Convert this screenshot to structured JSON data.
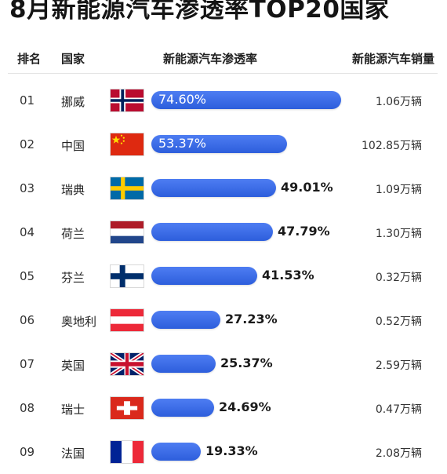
{
  "title": "8月新能源汽车渗透率TOP20国家",
  "headers": {
    "rank": "排名",
    "country": "国家",
    "penetration": "新能源汽车渗透率",
    "sales": "新能源汽车销量"
  },
  "chart_data": {
    "type": "bar",
    "orientation": "horizontal",
    "categories": [
      "挪威",
      "中国",
      "瑞典",
      "荷兰",
      "芬兰",
      "奥地利",
      "英国",
      "瑞士",
      "法国"
    ],
    "values": [
      74.6,
      53.37,
      49.01,
      47.79,
      41.53,
      27.23,
      25.37,
      24.69,
      19.33
    ],
    "value_unit": "%",
    "bar_color": "#3a6cea"
  },
  "rows": [
    {
      "rank": "01",
      "country": "挪威",
      "flag": "norway-flag",
      "pct": 74.6,
      "pct_label": "74.60%",
      "label_inside": true,
      "sales": "1.06万辆"
    },
    {
      "rank": "02",
      "country": "中国",
      "flag": "china-flag",
      "pct": 53.37,
      "pct_label": "53.37%",
      "label_inside": true,
      "sales": "102.85万辆"
    },
    {
      "rank": "03",
      "country": "瑞典",
      "flag": "sweden-flag",
      "pct": 49.01,
      "pct_label": "49.01%",
      "label_inside": false,
      "sales": "1.09万辆"
    },
    {
      "rank": "04",
      "country": "荷兰",
      "flag": "netherlands-flag",
      "pct": 47.79,
      "pct_label": "47.79%",
      "label_inside": false,
      "sales": "1.30万辆"
    },
    {
      "rank": "05",
      "country": "芬兰",
      "flag": "finland-flag",
      "pct": 41.53,
      "pct_label": "41.53%",
      "label_inside": false,
      "sales": "0.32万辆"
    },
    {
      "rank": "06",
      "country": "奥地利",
      "flag": "austria-flag",
      "pct": 27.23,
      "pct_label": "27.23%",
      "label_inside": false,
      "sales": "0.52万辆"
    },
    {
      "rank": "07",
      "country": "英国",
      "flag": "uk-flag",
      "pct": 25.37,
      "pct_label": "25.37%",
      "label_inside": false,
      "sales": "2.59万辆"
    },
    {
      "rank": "08",
      "country": "瑞士",
      "flag": "switzerland-flag",
      "pct": 24.69,
      "pct_label": "24.69%",
      "label_inside": false,
      "sales": "0.47万辆"
    },
    {
      "rank": "09",
      "country": "法国",
      "flag": "france-flag",
      "pct": 19.33,
      "pct_label": "19.33%",
      "label_inside": false,
      "sales": "2.08万辆"
    }
  ]
}
